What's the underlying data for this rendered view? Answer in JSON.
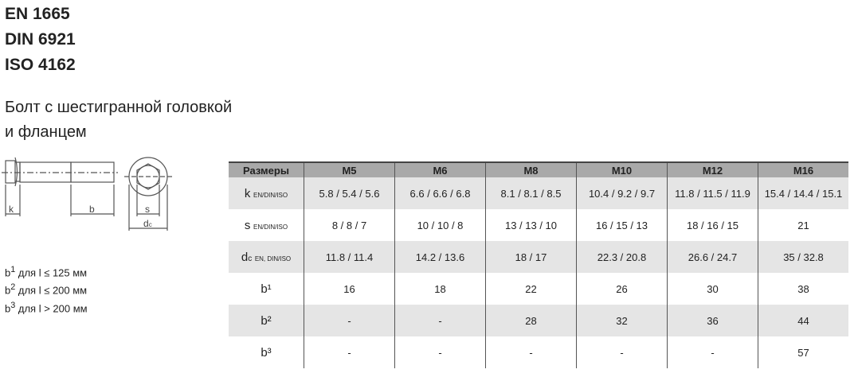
{
  "standards": [
    "EN 1665",
    "DIN 6921",
    "ISO 4162"
  ],
  "title_lines": [
    "Болт с шестигранной головкой",
    "и фланцем"
  ],
  "drawing_labels": {
    "k": "k",
    "b": "b",
    "s": "s",
    "dc": "d",
    "dc_sub": "c"
  },
  "notes": [
    {
      "base": "b",
      "sup": "1",
      "text": " для l ≤ 125 мм"
    },
    {
      "base": "b",
      "sup": "2",
      "text": " для l ≤ 200 мм"
    },
    {
      "base": "b",
      "sup": "3",
      "text": " для l > 200 мм"
    }
  ],
  "table": {
    "headers": [
      "Размеры",
      "M5",
      "M6",
      "M8",
      "M10",
      "M12",
      "M16"
    ],
    "rows": [
      {
        "label": "k",
        "sub": "EN/DIN/ISO",
        "cells": [
          "5.8 / 5.4 / 5.6",
          "6.6 / 6.6 / 6.8",
          "8.1 / 8.1 / 8.5",
          "10.4 / 9.2 / 9.7",
          "11.8 / 11.5 / 11.9",
          "15.4 / 14.4 / 15.1"
        ]
      },
      {
        "label": "s",
        "sub": "EN/DIN/ISO",
        "cells": [
          "8 / 8 / 7",
          "10 / 10 / 8",
          "13 / 13 / 10",
          "16 / 15 / 13",
          "18 / 16 / 15",
          "21"
        ]
      },
      {
        "label": "dc",
        "sub": "EN, DIN/ISO",
        "cells": [
          "11.8 / 11.4",
          "14.2 / 13.6",
          "18 / 17",
          "22.3 / 20.8",
          "26.6 / 24.7",
          "35 / 32.8"
        ]
      },
      {
        "label": "b¹",
        "sub": "",
        "cells": [
          "16",
          "18",
          "22",
          "26",
          "30",
          "38"
        ]
      },
      {
        "label": "b²",
        "sub": "",
        "cells": [
          "-",
          "-",
          "28",
          "32",
          "36",
          "44"
        ]
      },
      {
        "label": "b³",
        "sub": "",
        "cells": [
          "-",
          "-",
          "-",
          "-",
          "-",
          "57"
        ]
      }
    ]
  }
}
